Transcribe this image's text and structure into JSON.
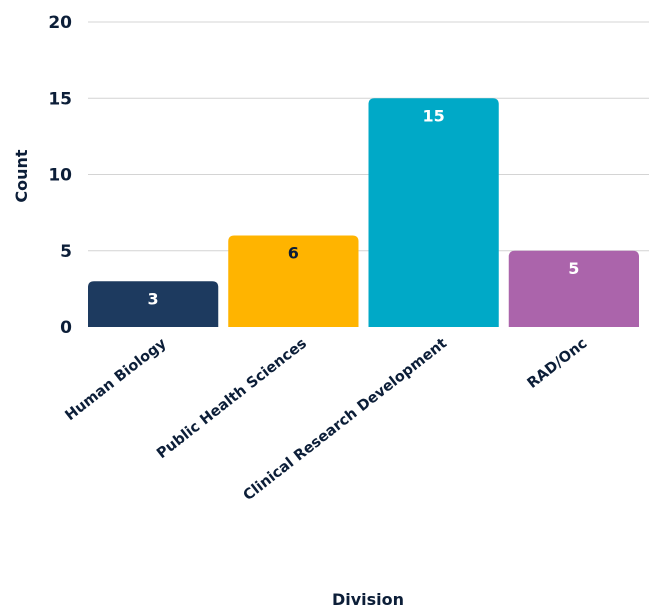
{
  "chart_data": {
    "type": "bar",
    "title": "",
    "xlabel": "Division",
    "ylabel": "Count",
    "ylim": [
      0,
      20
    ],
    "yticks": [
      0,
      5,
      10,
      15,
      20
    ],
    "grid": true,
    "categories": [
      "Human Biology",
      "Public Health Sciences",
      "Clinical Research Development",
      "RAD/Onc"
    ],
    "values": [
      3,
      6,
      15,
      5
    ],
    "data_labels": [
      "3",
      "6",
      "15",
      "5"
    ],
    "bar_colors": [
      "#1d3a5f",
      "#ffb400",
      "#00a9c7",
      "#ab64ab"
    ],
    "label_colors": [
      "#ffffff",
      "#0c1e38",
      "#ffffff",
      "#ffffff"
    ],
    "text_color": "#0c1e38",
    "grid_color": "#d4d4d4"
  }
}
